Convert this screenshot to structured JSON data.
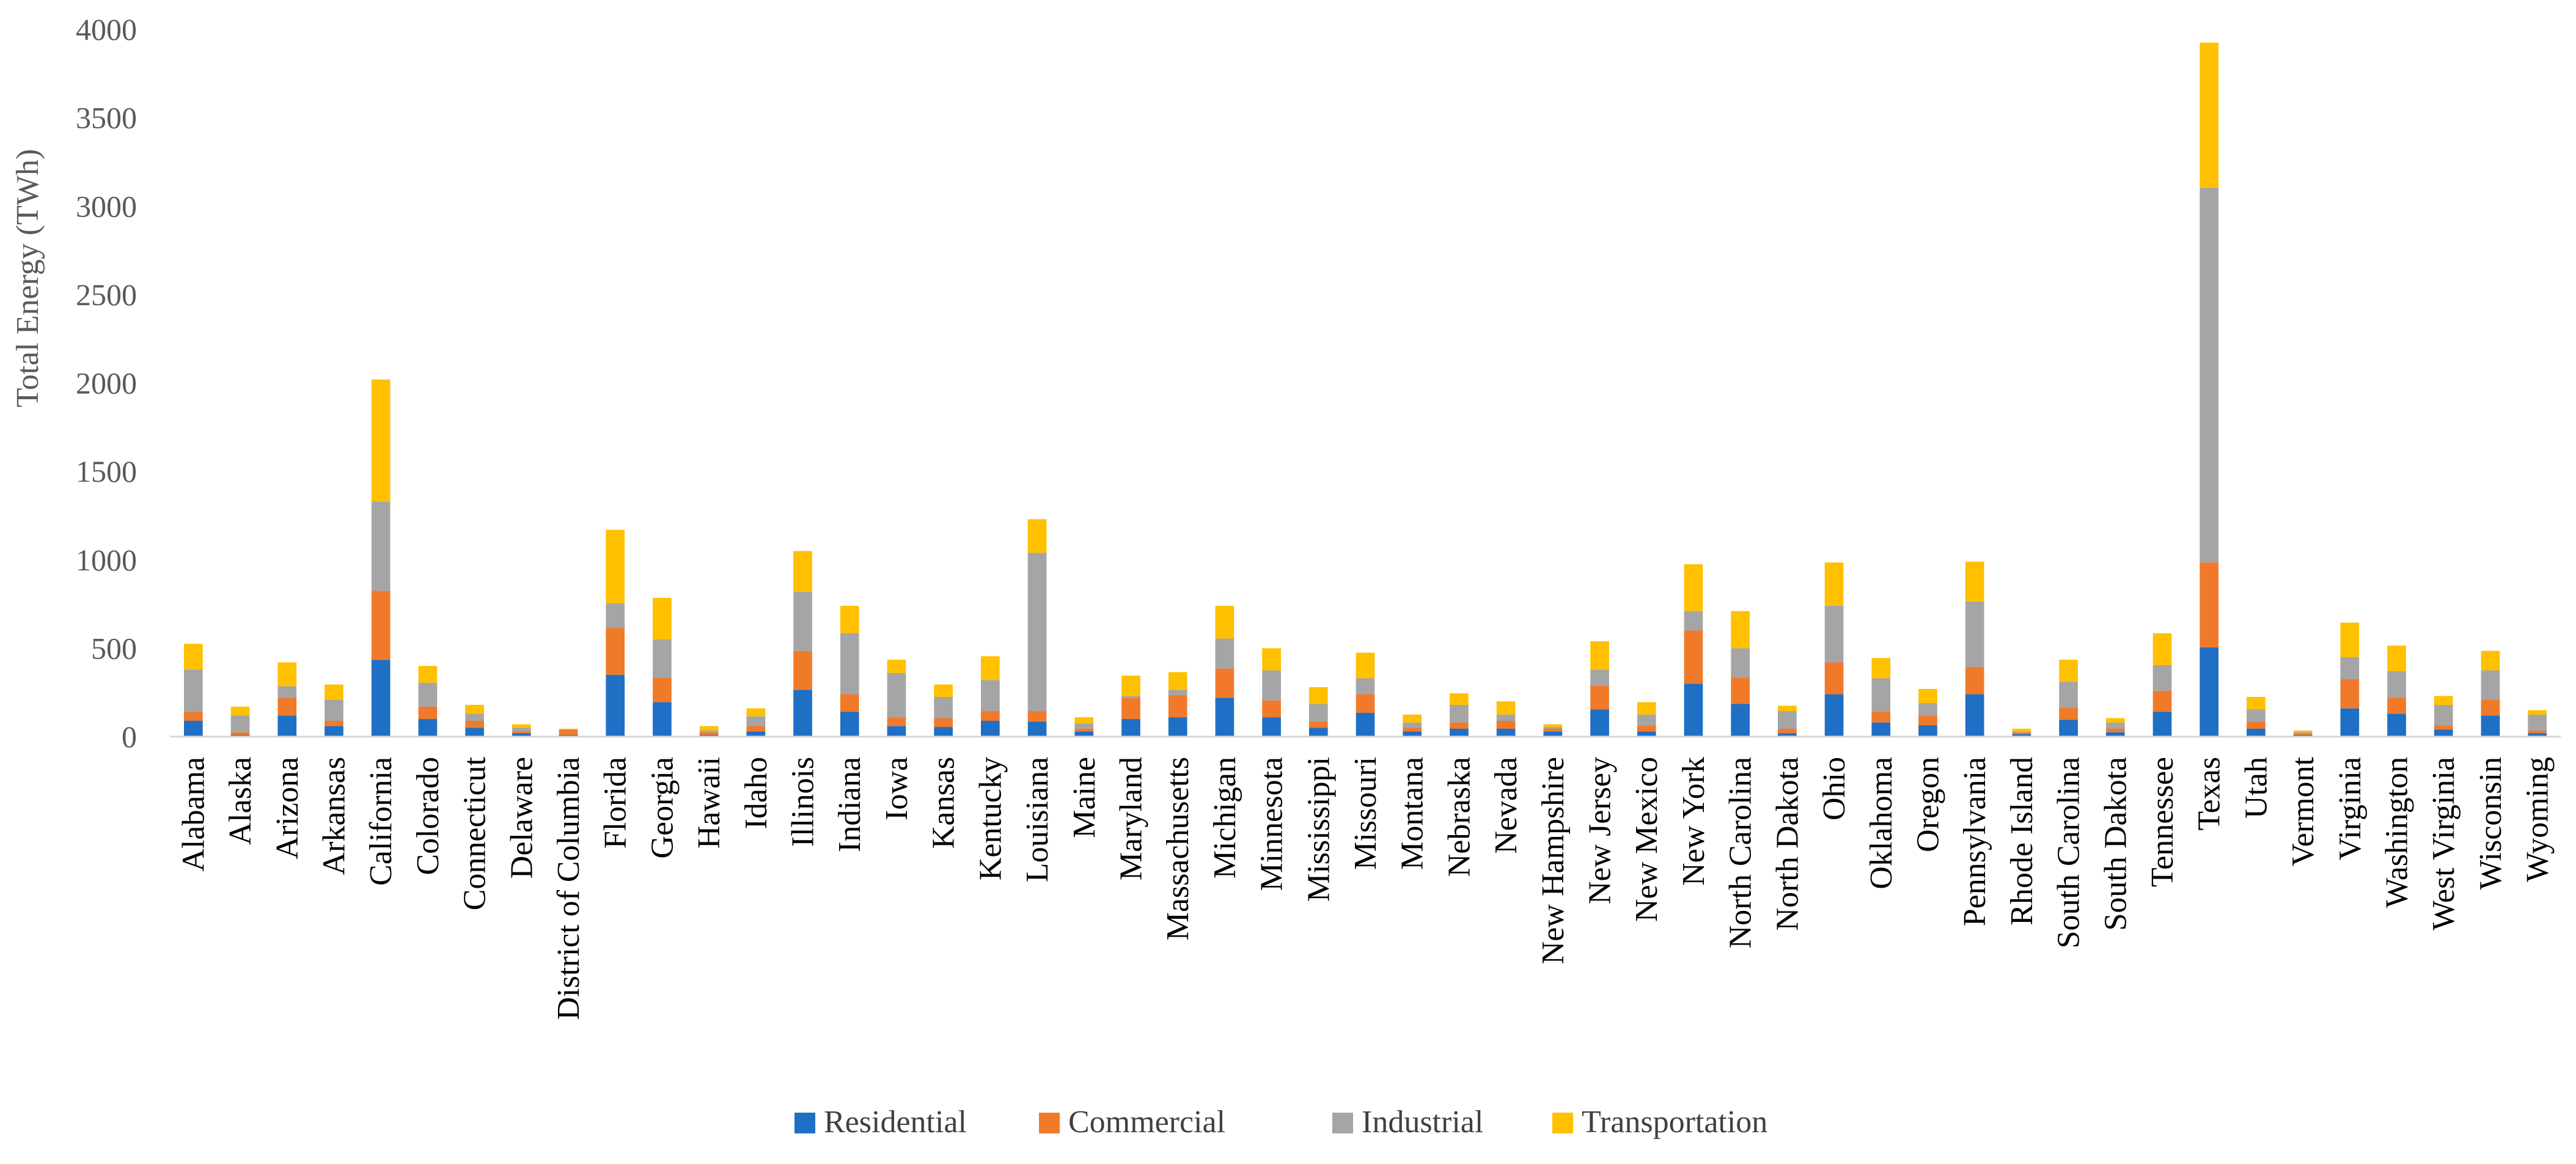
{
  "chart_data": {
    "type": "bar",
    "stacked": true,
    "title": "",
    "xlabel": "",
    "ylabel": "Total Energy (TWh)",
    "ylim": [
      0,
      4000
    ],
    "yticks": [
      0,
      500,
      1000,
      1500,
      2000,
      2500,
      3000,
      3500,
      4000
    ],
    "grid": false,
    "legend_position": "bottom",
    "categories": [
      "Alabama",
      "Alaska",
      "Arizona",
      "Arkansas",
      "California",
      "Colorado",
      "Connecticut",
      "Delaware",
      "District of Columbia",
      "Florida",
      "Georgia",
      "Hawaii",
      "Idaho",
      "Illinois",
      "Indiana",
      "Iowa",
      "Kansas",
      "Kentucky",
      "Louisiana",
      "Maine",
      "Maryland",
      "Massachusetts",
      "Michigan",
      "Minnesota",
      "Mississippi",
      "Missouri",
      "Montana",
      "Nebraska",
      "Nevada",
      "New Hampshire",
      "New Jersey",
      "New Mexico",
      "New York",
      "North Carolina",
      "North Dakota",
      "Ohio",
      "Oklahoma",
      "Oregon",
      "Pennsylvania",
      "Rhode Island",
      "South Carolina",
      "South Dakota",
      "Tennessee",
      "Texas",
      "Utah",
      "Vermont",
      "Virginia",
      "Washington",
      "West Virginia",
      "Wisconsin",
      "Wyoming"
    ],
    "series": [
      {
        "name": "Residential",
        "color": "#1f6fc5",
        "values": [
          90,
          10,
          120,
          60,
          435,
          100,
          50,
          20,
          10,
          350,
          195,
          10,
          30,
          265,
          140,
          60,
          55,
          90,
          85,
          30,
          100,
          110,
          220,
          110,
          50,
          135,
          30,
          45,
          45,
          30,
          155,
          30,
          300,
          185,
          20,
          240,
          80,
          65,
          240,
          15,
          95,
          25,
          140,
          505,
          45,
          10,
          160,
          130,
          40,
          120,
          20
        ]
      },
      {
        "name": "Commercial",
        "color": "#f07a2a",
        "values": [
          50,
          15,
          100,
          30,
          390,
          70,
          40,
          10,
          30,
          265,
          140,
          15,
          30,
          220,
          100,
          50,
          50,
          55,
          60,
          15,
          120,
          125,
          165,
          95,
          35,
          105,
          20,
          35,
          45,
          15,
          135,
          35,
          300,
          150,
          25,
          180,
          60,
          55,
          155,
          10,
          70,
          20,
          120,
          480,
          40,
          10,
          165,
          90,
          25,
          90,
          15
        ]
      },
      {
        "name": "Industrial",
        "color": "#a5a5a5",
        "values": [
          240,
          95,
          65,
          120,
          505,
          135,
          40,
          20,
          0,
          140,
          215,
          10,
          55,
          335,
          345,
          250,
          120,
          175,
          895,
          30,
          10,
          30,
          170,
          170,
          100,
          90,
          30,
          100,
          35,
          10,
          90,
          60,
          110,
          165,
          100,
          320,
          190,
          70,
          370,
          5,
          145,
          35,
          145,
          2120,
          70,
          5,
          125,
          150,
          115,
          165,
          90
        ]
      },
      {
        "name": "Transportation",
        "color": "#ffc000",
        "values": [
          145,
          50,
          135,
          85,
          690,
          95,
          50,
          20,
          5,
          415,
          235,
          25,
          45,
          230,
          155,
          75,
          70,
          135,
          190,
          35,
          115,
          100,
          185,
          125,
          95,
          145,
          45,
          65,
          75,
          15,
          160,
          70,
          265,
          210,
          30,
          245,
          115,
          80,
          225,
          15,
          125,
          25,
          180,
          820,
          70,
          10,
          195,
          145,
          50,
          110,
          25
        ]
      }
    ]
  }
}
